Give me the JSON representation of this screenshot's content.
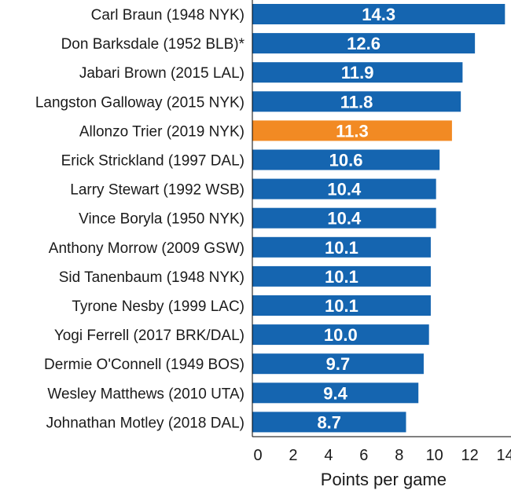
{
  "chart_data": {
    "type": "bar",
    "orientation": "horizontal",
    "categories": [
      "Carl Braun (1948 NYK)",
      "Don Barksdale (1952 BLB)*",
      "Jabari Brown (2015 LAL)",
      "Langston Galloway (2015 NYK)",
      "Allonzo Trier (2019 NYK)",
      "Erick Strickland (1997 DAL)",
      "Larry Stewart (1992 WSB)",
      "Vince Boryla (1950 NYK)",
      "Anthony Morrow (2009 GSW)",
      "Sid Tanenbaum (1948 NYK)",
      "Tyrone Nesby (1999 LAC)",
      "Yogi Ferrell (2017 BRK/DAL)",
      "Dermie O'Connell (1949 BOS)",
      "Wesley Matthews (2010 UTA)",
      "Johnathan Motley (2018 DAL)"
    ],
    "values": [
      14.3,
      12.6,
      11.9,
      11.8,
      11.3,
      10.6,
      10.4,
      10.4,
      10.1,
      10.1,
      10.1,
      10.0,
      9.7,
      9.4,
      8.7
    ],
    "value_labels": [
      "14.3",
      "12.6",
      "11.9",
      "11.8",
      "11.3",
      "10.6",
      "10.4",
      "10.4",
      "10.1",
      "10.1",
      "10.1",
      "10.0",
      "9.7",
      "9.4",
      "8.7"
    ],
    "highlight_index": 4,
    "colors": {
      "default": "#1565b0",
      "highlight": "#f28a23"
    },
    "xlabel": "Points per game",
    "xlim": [
      0,
      14.5
    ],
    "xticks": [
      0,
      2,
      4,
      6,
      8,
      10,
      12,
      14
    ],
    "xtick_labels": [
      "0",
      "2",
      "4",
      "6",
      "8",
      "10",
      "12",
      "14"
    ],
    "grid": false,
    "legend": "none"
  }
}
